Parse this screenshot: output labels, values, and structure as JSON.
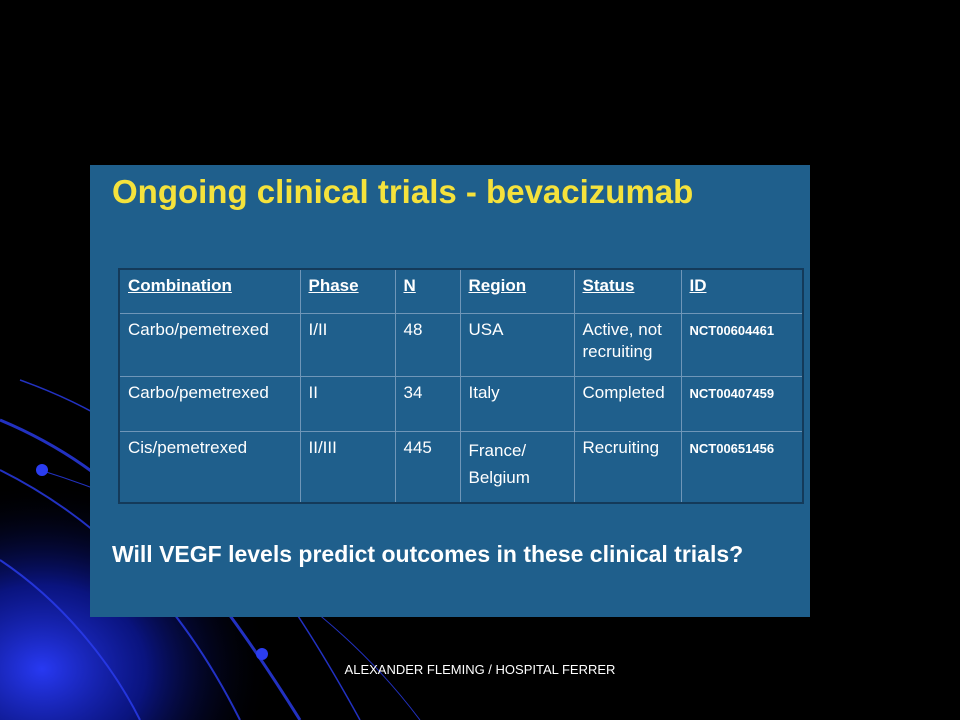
{
  "slide": {
    "title": "Ongoing clinical trials - bevacizumab",
    "question": "Will VEGF levels predict outcomes in these clinical trials?",
    "footer": "ALEXANDER FLEMING / HOSPITAL  FERRER"
  },
  "table": {
    "headers": {
      "combination": "Combination",
      "phase": "Phase",
      "n": "N",
      "region": "Region",
      "status": "Status",
      "id": "ID"
    },
    "rows": [
      {
        "combination": "Carbo/pemetrexed",
        "phase": "I/II",
        "n": "48",
        "region_line1": "USA",
        "region_line2": "",
        "status_line1": "Active, not",
        "status_line2": "recruiting",
        "id": "NCT00604461"
      },
      {
        "combination": "Carbo/pemetrexed",
        "phase": "II",
        "n": "34",
        "region_line1": "Italy",
        "region_line2": "",
        "status_line1": "Completed",
        "status_line2": "",
        "id": "NCT00407459"
      },
      {
        "combination": "Cis/pemetrexed",
        "phase": "II/III",
        "n": "445",
        "region_line1": "France/",
        "region_line2": "Belgium",
        "status_line1": "Recruiting",
        "status_line2": "",
        "id": "NCT00651456"
      }
    ]
  },
  "colors": {
    "background": "#000000",
    "panel": "#1f5f8c",
    "title": "#f5e23c",
    "text": "#ffffff",
    "decor_blue": "#1a2fd6"
  }
}
